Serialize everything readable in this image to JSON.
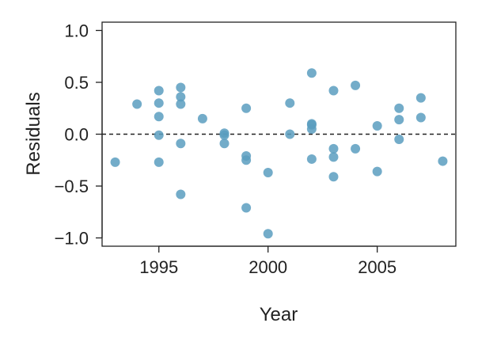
{
  "chart_data": {
    "type": "scatter",
    "title": "",
    "xlabel": "Year",
    "ylabel": "Residuals",
    "xlim": [
      1992.4,
      2008.6
    ],
    "ylim": [
      -1.08,
      1.08
    ],
    "x_ticks": [
      1995,
      2000,
      2005
    ],
    "x_tick_labels": [
      "1995",
      "2000",
      "2005"
    ],
    "y_ticks": [
      -1.0,
      -0.5,
      0.0,
      0.5,
      1.0
    ],
    "y_tick_labels": [
      "−1.0",
      "−0.5",
      "0.0",
      "0.5",
      "1.0"
    ],
    "reference_line_y": 0.0,
    "grid": false,
    "point_color": "#5b9dbf",
    "points": [
      {
        "x": 1993,
        "y": -0.27
      },
      {
        "x": 1994,
        "y": 0.29
      },
      {
        "x": 1995,
        "y": 0.42
      },
      {
        "x": 1995,
        "y": 0.3
      },
      {
        "x": 1995,
        "y": 0.17
      },
      {
        "x": 1995,
        "y": -0.01
      },
      {
        "x": 1995,
        "y": -0.27
      },
      {
        "x": 1996,
        "y": 0.45
      },
      {
        "x": 1996,
        "y": 0.36
      },
      {
        "x": 1996,
        "y": 0.29
      },
      {
        "x": 1996,
        "y": -0.09
      },
      {
        "x": 1996,
        "y": -0.58
      },
      {
        "x": 1997,
        "y": 0.15
      },
      {
        "x": 1998,
        "y": 0.01
      },
      {
        "x": 1998,
        "y": -0.01
      },
      {
        "x": 1998,
        "y": -0.09
      },
      {
        "x": 1999,
        "y": 0.25
      },
      {
        "x": 1999,
        "y": -0.21
      },
      {
        "x": 1999,
        "y": -0.25
      },
      {
        "x": 1999,
        "y": -0.71
      },
      {
        "x": 2000,
        "y": -0.37
      },
      {
        "x": 2000,
        "y": -0.96
      },
      {
        "x": 2001,
        "y": 0.3
      },
      {
        "x": 2001,
        "y": 0.0
      },
      {
        "x": 2002,
        "y": 0.59
      },
      {
        "x": 2002,
        "y": 0.1
      },
      {
        "x": 2002,
        "y": 0.09
      },
      {
        "x": 2002,
        "y": 0.05
      },
      {
        "x": 2002,
        "y": -0.24
      },
      {
        "x": 2003,
        "y": 0.42
      },
      {
        "x": 2003,
        "y": -0.14
      },
      {
        "x": 2003,
        "y": -0.22
      },
      {
        "x": 2003,
        "y": -0.41
      },
      {
        "x": 2004,
        "y": 0.47
      },
      {
        "x": 2004,
        "y": -0.14
      },
      {
        "x": 2005,
        "y": 0.08
      },
      {
        "x": 2005,
        "y": -0.36
      },
      {
        "x": 2006,
        "y": 0.25
      },
      {
        "x": 2006,
        "y": 0.14
      },
      {
        "x": 2006,
        "y": -0.05
      },
      {
        "x": 2007,
        "y": 0.35
      },
      {
        "x": 2007,
        "y": 0.16
      },
      {
        "x": 2008,
        "y": -0.26
      }
    ]
  }
}
